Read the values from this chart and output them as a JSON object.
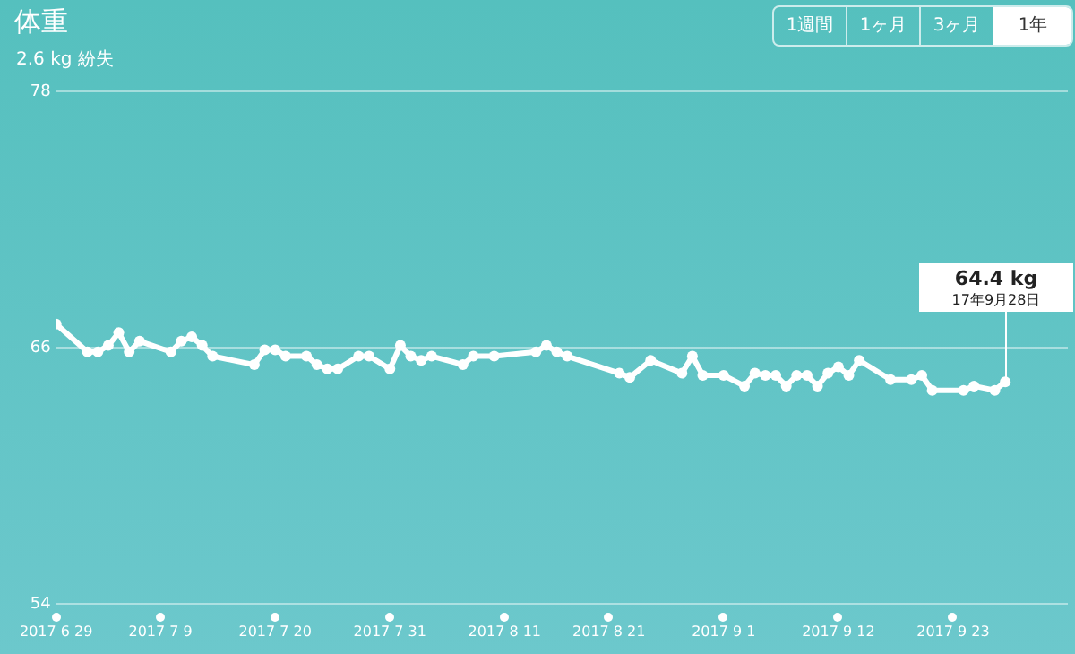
{
  "chart_data": {
    "type": "line",
    "title": "体重",
    "subtitle": "2.6 kg 紛失",
    "x": [
      "2017-06-29",
      "2017-07-02",
      "2017-07-03",
      "2017-07-04",
      "2017-07-05",
      "2017-07-06",
      "2017-07-07",
      "2017-07-10",
      "2017-07-11",
      "2017-07-12",
      "2017-07-13",
      "2017-07-14",
      "2017-07-18",
      "2017-07-19",
      "2017-07-20",
      "2017-07-21",
      "2017-07-23",
      "2017-07-24",
      "2017-07-25",
      "2017-07-26",
      "2017-07-28",
      "2017-07-29",
      "2017-07-31",
      "2017-08-01",
      "2017-08-02",
      "2017-08-03",
      "2017-08-04",
      "2017-08-07",
      "2017-08-08",
      "2017-08-10",
      "2017-08-14",
      "2017-08-15",
      "2017-08-16",
      "2017-08-17",
      "2017-08-22",
      "2017-08-23",
      "2017-08-25",
      "2017-08-28",
      "2017-08-29",
      "2017-08-30",
      "2017-09-01",
      "2017-09-03",
      "2017-09-04",
      "2017-09-05",
      "2017-09-06",
      "2017-09-07",
      "2017-09-08",
      "2017-09-09",
      "2017-09-10",
      "2017-09-11",
      "2017-09-12",
      "2017-09-13",
      "2017-09-14",
      "2017-09-17",
      "2017-09-19",
      "2017-09-20",
      "2017-09-21",
      "2017-09-24",
      "2017-09-25",
      "2017-09-27",
      "2017-09-28"
    ],
    "series": [
      {
        "color": "#ffffff",
        "values": [
          67.1,
          65.8,
          65.8,
          66.1,
          66.7,
          65.8,
          66.3,
          65.8,
          66.3,
          66.5,
          66.1,
          65.6,
          65.2,
          65.9,
          65.9,
          65.6,
          65.6,
          65.2,
          65.0,
          65.0,
          65.6,
          65.6,
          65.0,
          66.1,
          65.6,
          65.4,
          65.6,
          65.2,
          65.6,
          65.6,
          65.8,
          66.1,
          65.8,
          65.6,
          64.8,
          64.6,
          65.4,
          64.8,
          65.6,
          64.7,
          64.7,
          64.2,
          64.8,
          64.7,
          64.7,
          64.2,
          64.7,
          64.7,
          64.2,
          64.8,
          65.1,
          64.7,
          65.4,
          64.5,
          64.5,
          64.7,
          64.0,
          64.0,
          64.2,
          64.0,
          64.4
        ]
      }
    ],
    "xlim": [
      "2017-06-29",
      "2017-10-04"
    ],
    "xticks": [
      {
        "value": "2017-06-29",
        "label": "2017 6 29"
      },
      {
        "value": "2017-07-09",
        "label": "2017 7 9"
      },
      {
        "value": "2017-07-20",
        "label": "2017 7 20"
      },
      {
        "value": "2017-07-31",
        "label": "2017 7 31"
      },
      {
        "value": "2017-08-11",
        "label": "2017 8 11"
      },
      {
        "value": "2017-08-21",
        "label": "2017 8 21"
      },
      {
        "value": "2017-09-01",
        "label": "2017 9 1"
      },
      {
        "value": "2017-09-12",
        "label": "2017 9 12"
      },
      {
        "value": "2017-09-23",
        "label": "2017 9 23"
      }
    ],
    "ylim": [
      54,
      78
    ],
    "yticks": [
      54,
      66,
      78
    ],
    "grid": "y",
    "legend": false,
    "marker": "circle",
    "line_style": "solid",
    "annotations": [
      "64.4 kg",
      "17年9月28日",
      "1週間",
      "1ヶ月",
      "3ヶ月",
      "1年"
    ]
  }
}
